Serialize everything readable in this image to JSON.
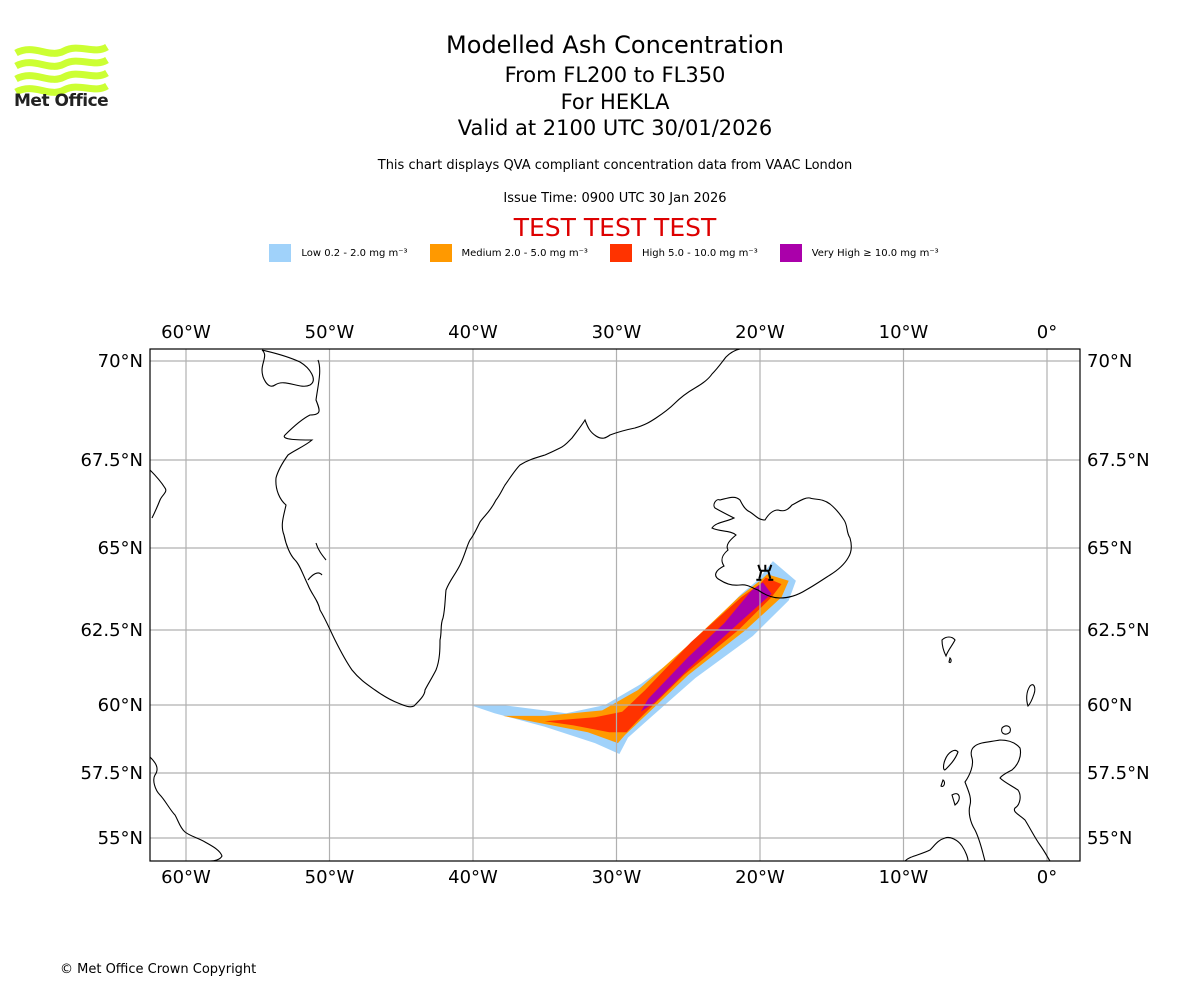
{
  "logo": {
    "text": "Met Office",
    "color": "#ccff33"
  },
  "title": {
    "line1": "Modelled Ash Concentration",
    "line2": "From FL200 to FL350",
    "line3": "For HEKLA",
    "line4": "Valid at 2100 UTC 30/01/2026"
  },
  "subtitle": "This chart displays QVA compliant concentration data from VAAC London",
  "issue_time": "Issue Time: 0900 UTC 30 Jan 2026",
  "test_banner": {
    "text": "TEST TEST TEST",
    "color": "#dd0000"
  },
  "legend": [
    {
      "label": "Low 0.2 - 2.0 mg m⁻³",
      "color": "#a0d2fa"
    },
    {
      "label": "Medium 2.0 - 5.0 mg m⁻³",
      "color": "#ff9900"
    },
    {
      "label": "High 5.0 - 10.0 mg m⁻³",
      "color": "#ff3300"
    },
    {
      "label": "Very High ≥ 10.0 mg m⁻³",
      "color": "#aa00aa"
    }
  ],
  "copyright": "© Met Office Crown Copyright",
  "chart_data": {
    "type": "heatmap",
    "title": "Modelled Ash Concentration",
    "projection": "plate-carree-like",
    "lon_range": [
      -62.5,
      2.5
    ],
    "lat_range": [
      54.4,
      70.3
    ],
    "grid": true,
    "lon_ticks": [
      -60,
      -50,
      -40,
      -30,
      -20,
      -10,
      0
    ],
    "lon_tick_labels": [
      "60°W",
      "50°W",
      "40°W",
      "30°W",
      "20°W",
      "10°W",
      "0°"
    ],
    "lat_ticks": [
      70,
      67.5,
      65,
      62.5,
      60,
      57.5,
      55
    ],
    "lat_tick_labels": [
      "70°N",
      "67.5°N",
      "65°N",
      "62.5°N",
      "60°N",
      "57.5°N",
      "55°N"
    ],
    "volcano": {
      "name": "HEKLA",
      "lon": -19.7,
      "lat": 64.0
    },
    "plume": {
      "description": "Ash plume extending SW from Hekla to ~30W, 58.5N then W to ~40W, 60N",
      "levels": [
        {
          "name": "Low",
          "polygon": [
            [
              -19.1,
              64.6
            ],
            [
              -17.5,
              64.0
            ],
            [
              -18.0,
              63.4
            ],
            [
              -20.5,
              62.3
            ],
            [
              -24.5,
              60.9
            ],
            [
              -27.5,
              59.6
            ],
            [
              -29.2,
              58.8
            ],
            [
              -29.8,
              58.2
            ],
            [
              -31.5,
              58.6
            ],
            [
              -35,
              59.2
            ],
            [
              -38.5,
              59.7
            ],
            [
              -40.2,
              60.0
            ],
            [
              -38.0,
              60.0
            ],
            [
              -33.5,
              59.7
            ],
            [
              -30.8,
              60.0
            ],
            [
              -28.3,
              60.7
            ],
            [
              -25.2,
              61.8
            ],
            [
              -21.3,
              63.6
            ],
            [
              -20.2,
              64.0
            ]
          ]
        },
        {
          "name": "Medium",
          "polygon": [
            [
              -19.5,
              64.2
            ],
            [
              -18.0,
              64.0
            ],
            [
              -18.5,
              63.5
            ],
            [
              -21.0,
              62.5
            ],
            [
              -25.0,
              61.0
            ],
            [
              -28.0,
              59.6
            ],
            [
              -29.4,
              58.9
            ],
            [
              -29.9,
              58.6
            ],
            [
              -32,
              59.0
            ],
            [
              -35,
              59.3
            ],
            [
              -37.9,
              59.6
            ],
            [
              -35,
              59.6
            ],
            [
              -31.0,
              59.8
            ],
            [
              -28.5,
              60.5
            ],
            [
              -25.0,
              62.0
            ],
            [
              -21.5,
              63.5
            ],
            [
              -20.0,
              64.0
            ]
          ]
        },
        {
          "name": "High",
          "polygon": [
            [
              -19.6,
              64.1
            ],
            [
              -18.5,
              63.9
            ],
            [
              -19.2,
              63.5
            ],
            [
              -21.5,
              62.5
            ],
            [
              -25.3,
              61.0
            ],
            [
              -28.2,
              59.6
            ],
            [
              -29.3,
              59.0
            ],
            [
              -30.5,
              59.0
            ],
            [
              -33.0,
              59.25
            ],
            [
              -35.0,
              59.4
            ],
            [
              -31.5,
              59.55
            ],
            [
              -29.6,
              59.75
            ],
            [
              -28.0,
              60.5
            ],
            [
              -24.8,
              62.1
            ],
            [
              -21.3,
              63.5
            ],
            [
              -20.0,
              63.9
            ]
          ]
        },
        {
          "name": "Very High",
          "polygon": [
            [
              -19.8,
              63.95
            ],
            [
              -19.2,
              63.6
            ],
            [
              -21.5,
              62.7
            ],
            [
              -25.0,
              61.2
            ],
            [
              -27.3,
              60.1
            ],
            [
              -28.3,
              59.75
            ],
            [
              -27.8,
              60.2
            ],
            [
              -25.0,
              61.6
            ],
            [
              -22.5,
              62.7
            ],
            [
              -20.6,
              63.7
            ]
          ]
        }
      ]
    }
  }
}
